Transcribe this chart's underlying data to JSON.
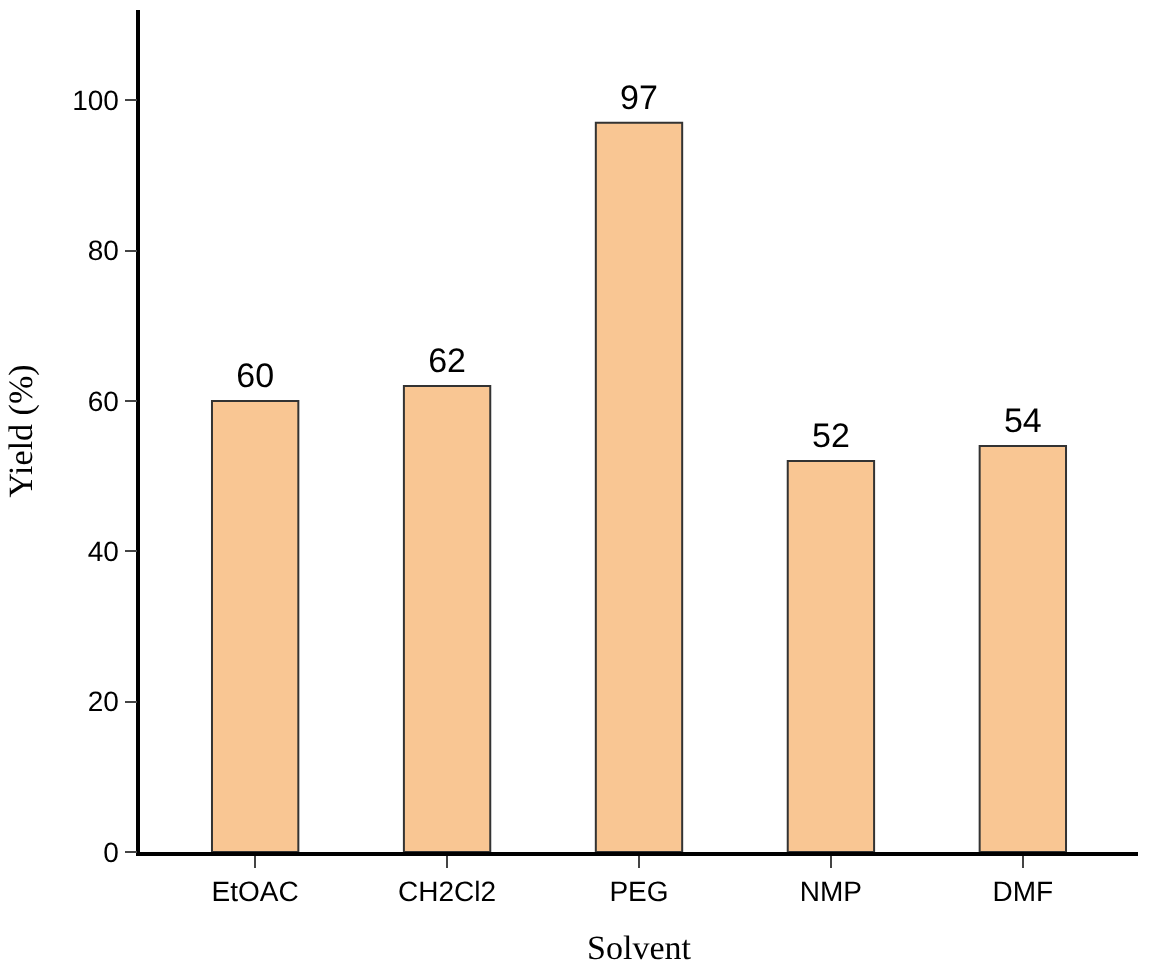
{
  "chart_data": {
    "type": "bar",
    "xlabel": "Solvent",
    "ylabel": "Yield (%)",
    "categories": [
      "EtOAC",
      "CH2Cl2",
      "PEG",
      "NMP",
      "DMF"
    ],
    "values": [
      60,
      62,
      97,
      52,
      54
    ],
    "color": "#f9c693",
    "ylim": [
      0,
      112
    ],
    "yticks": [
      0,
      20,
      40,
      60,
      80,
      100
    ],
    "data_labels": true
  }
}
